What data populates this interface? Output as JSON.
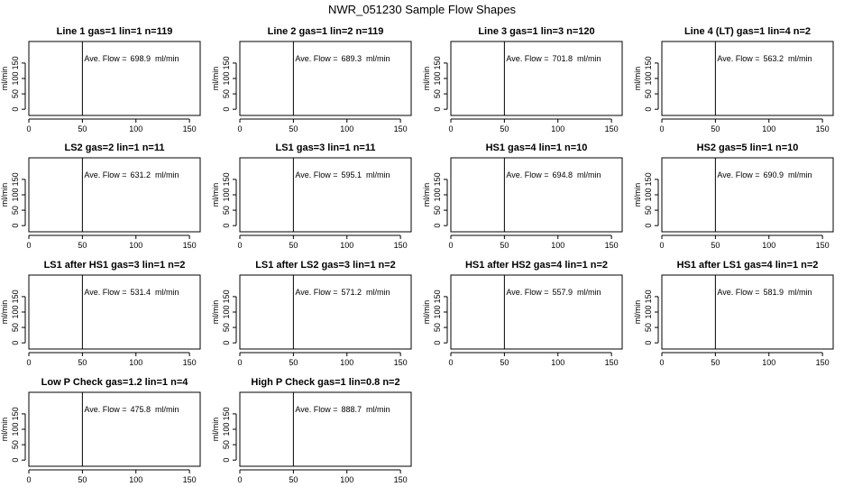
{
  "title": "NWR_051230  Sample Flow Shapes",
  "chart_data": {
    "type": "line",
    "layout": "4x4 grid of small multiples",
    "xlim": [
      0,
      160
    ],
    "ylim": [
      -20,
      220
    ],
    "xticks": [
      0,
      50,
      100,
      150
    ],
    "yticks": [
      0,
      50,
      100,
      150
    ],
    "ylabel": "ml/min",
    "xlabel": "",
    "grid": false,
    "annotation_prefix": "Ave. Flow =",
    "annotation_unit": "ml/min",
    "marker_x": 50,
    "panels": [
      {
        "title": "Line 1 gas=1 lin=1 n=119",
        "ave_flow": "698.9"
      },
      {
        "title": "Line 2 gas=1 lin=2 n=119",
        "ave_flow": "689.3"
      },
      {
        "title": "Line 3 gas=1 lin=3 n=120",
        "ave_flow": "701.8"
      },
      {
        "title": "Line 4 (LT) gas=1 lin=4 n=2",
        "ave_flow": "563.2"
      },
      {
        "title": "LS2 gas=2 lin=1 n=11",
        "ave_flow": "631.2"
      },
      {
        "title": "LS1 gas=3 lin=1 n=11",
        "ave_flow": "595.1"
      },
      {
        "title": "HS1 gas=4 lin=1 n=10",
        "ave_flow": "694.8"
      },
      {
        "title": "HS2 gas=5 lin=1 n=10",
        "ave_flow": "690.9"
      },
      {
        "title": "LS1 after HS1 gas=3 lin=1 n=2",
        "ave_flow": "531.4"
      },
      {
        "title": "LS1 after LS2 gas=3 lin=1 n=2",
        "ave_flow": "571.2"
      },
      {
        "title": "HS1 after HS2 gas=4 lin=1 n=2",
        "ave_flow": "557.9"
      },
      {
        "title": "HS1 after LS1 gas=4 lin=1 n=2",
        "ave_flow": "581.9"
      },
      {
        "title": "Low P Check gas=1.2 lin=1 n=4",
        "ave_flow": "475.8"
      },
      {
        "title": "High P Check gas=1 lin=0.8 n=2",
        "ave_flow": "888.7"
      }
    ]
  }
}
